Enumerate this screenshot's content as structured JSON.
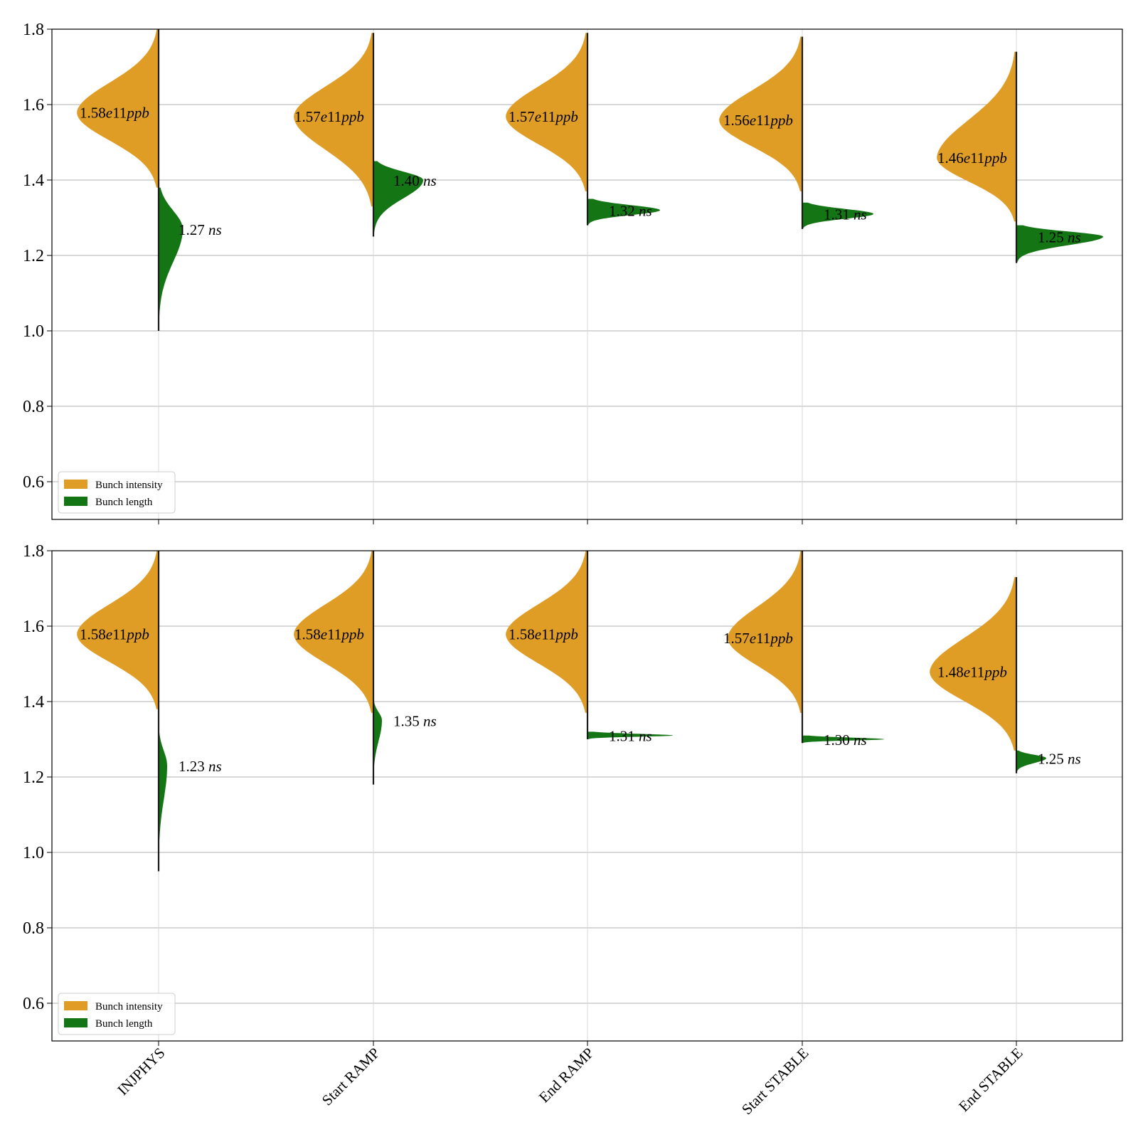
{
  "chart_data": {
    "type": "violin",
    "categories": [
      "INJPHYS",
      "Start RAMP",
      "End RAMP",
      "Start STABLE",
      "End STABLE"
    ],
    "ylim": [
      0.5,
      1.8
    ],
    "yticks": [
      0.6,
      0.8,
      1.0,
      1.2,
      1.4,
      1.6,
      1.8
    ],
    "grid": "horizontal",
    "legend_placement": "lower-left",
    "legend": [
      "Bunch intensity",
      "Bunch length"
    ],
    "colors": {
      "intensity": "#E09D25",
      "length": "#137513"
    },
    "panels": [
      {
        "series": [
          {
            "name": "Bunch intensity",
            "medians": [
              1.58,
              1.57,
              1.57,
              1.56,
              1.46
            ],
            "min": [
              1.38,
              1.33,
              1.37,
              1.37,
              1.29
            ],
            "max": [
              1.8,
              1.79,
              1.79,
              1.78,
              1.74
            ],
            "labels_value": [
              "1.58",
              "1.57",
              "1.57",
              "1.56",
              "1.46"
            ],
            "labels_unit": [
              "e11",
              "e11",
              "e11",
              "e11",
              "e11"
            ],
            "labels_suffix": [
              "ppb",
              "ppb",
              "ppb",
              "ppb",
              "ppb"
            ]
          },
          {
            "name": "Bunch length",
            "medians": [
              1.27,
              1.4,
              1.32,
              1.31,
              1.25
            ],
            "min": [
              1.0,
              1.25,
              1.28,
              1.27,
              1.18
            ],
            "max": [
              1.38,
              1.45,
              1.35,
              1.34,
              1.28
            ],
            "labels_value": [
              "1.27",
              "1.40",
              "1.32",
              "1.31",
              "1.25"
            ],
            "labels_suffix": [
              "ns",
              "ns",
              "ns",
              "ns",
              "ns"
            ]
          }
        ]
      },
      {
        "series": [
          {
            "name": "Bunch intensity",
            "medians": [
              1.58,
              1.58,
              1.58,
              1.57,
              1.48
            ],
            "min": [
              1.38,
              1.37,
              1.37,
              1.37,
              1.27
            ],
            "max": [
              1.8,
              1.8,
              1.8,
              1.8,
              1.73
            ],
            "labels_value": [
              "1.58",
              "1.58",
              "1.58",
              "1.57",
              "1.48"
            ],
            "labels_unit": [
              "e11",
              "e11",
              "e11",
              "e11",
              "e11"
            ],
            "labels_suffix": [
              "ppb",
              "ppb",
              "ppb",
              "ppb",
              "ppb"
            ]
          },
          {
            "name": "Bunch length",
            "medians": [
              1.23,
              1.35,
              1.31,
              1.3,
              1.25
            ],
            "min": [
              0.95,
              1.18,
              1.3,
              1.29,
              1.21
            ],
            "max": [
              1.32,
              1.4,
              1.32,
              1.31,
              1.27
            ],
            "labels_value": [
              "1.23",
              "1.35",
              "1.31",
              "1.30",
              "1.25"
            ],
            "labels_suffix": [
              "ns",
              "ns",
              "ns",
              "ns",
              "ns"
            ]
          }
        ]
      }
    ]
  }
}
